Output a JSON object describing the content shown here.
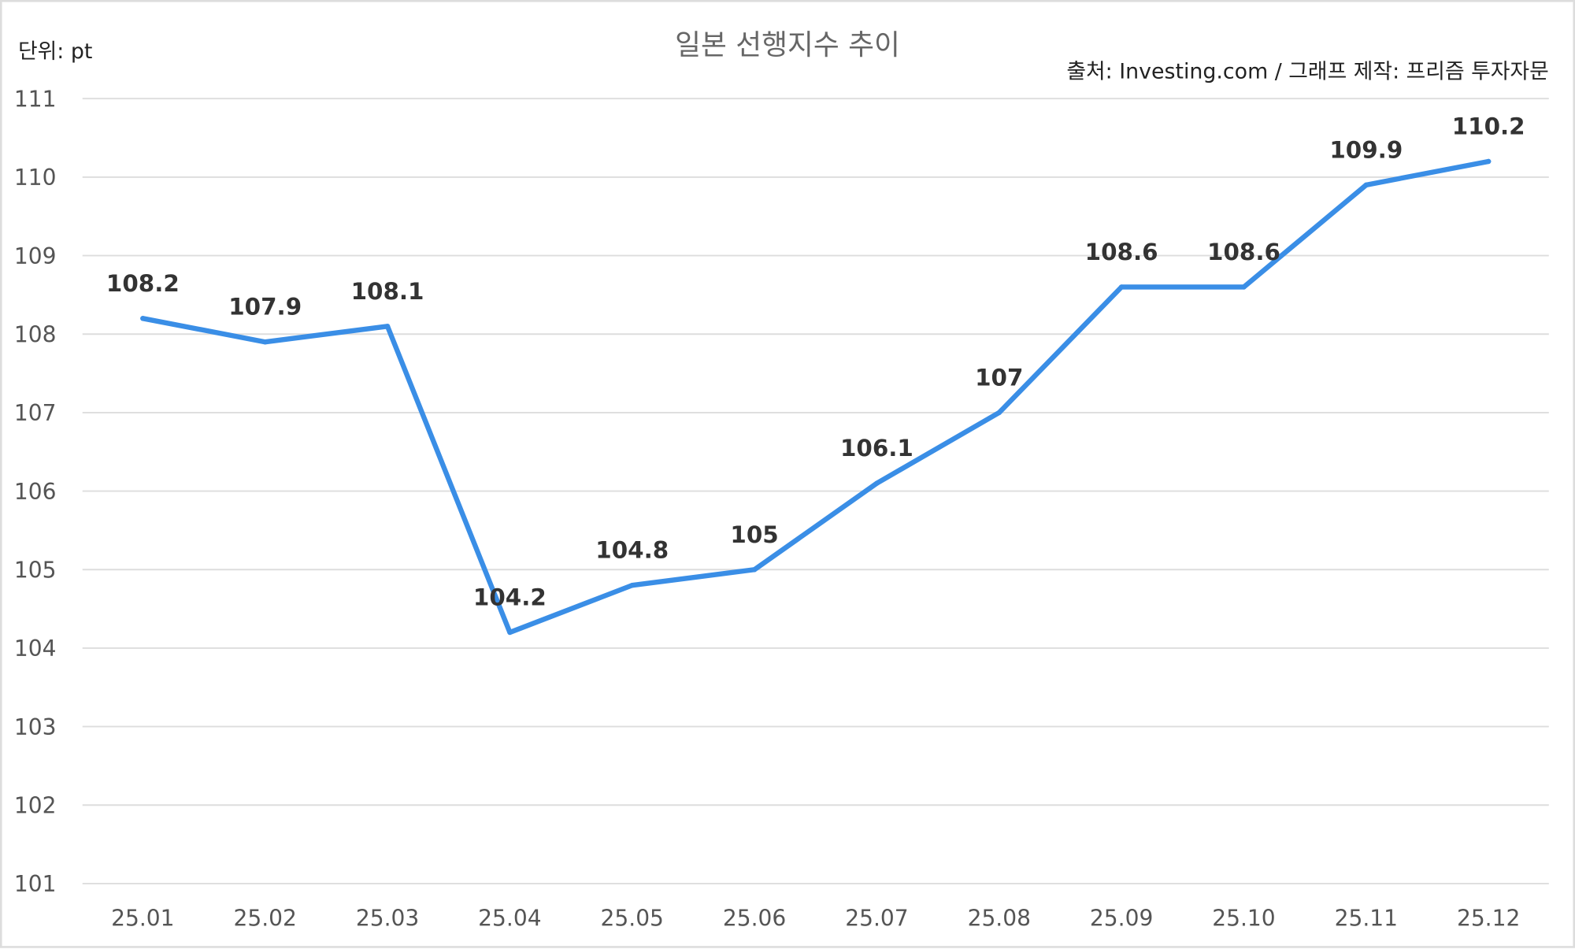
{
  "chart_data": {
    "type": "line",
    "title": "일본 선행지수 추이",
    "unit_label": "단위: pt",
    "source": "출처: Investing.com / 그래프 제작: 프리즘 투자자문",
    "categories": [
      "25.01",
      "25.02",
      "25.03",
      "25.04",
      "25.05",
      "25.06",
      "25.07",
      "25.08",
      "25.09",
      "25.10",
      "25.11",
      "25.12"
    ],
    "series": [
      {
        "values": [
          108.2,
          107.9,
          108.1,
          104.2,
          104.8,
          105,
          106.1,
          107,
          108.6,
          108.6,
          109.9,
          110.2
        ],
        "color": "#3a8ee6"
      }
    ],
    "data_labels": [
      "108.2",
      "107.9",
      "108.1",
      "104.2",
      "104.8",
      "105",
      "106.1",
      "107",
      "108.6",
      "108.6",
      "109.9",
      "110.2"
    ],
    "ylim": [
      101,
      111
    ],
    "yticks": [
      "101",
      "102",
      "103",
      "104",
      "105",
      "106",
      "107",
      "108",
      "109",
      "110",
      "111"
    ],
    "grid": true,
    "legend": "none"
  }
}
